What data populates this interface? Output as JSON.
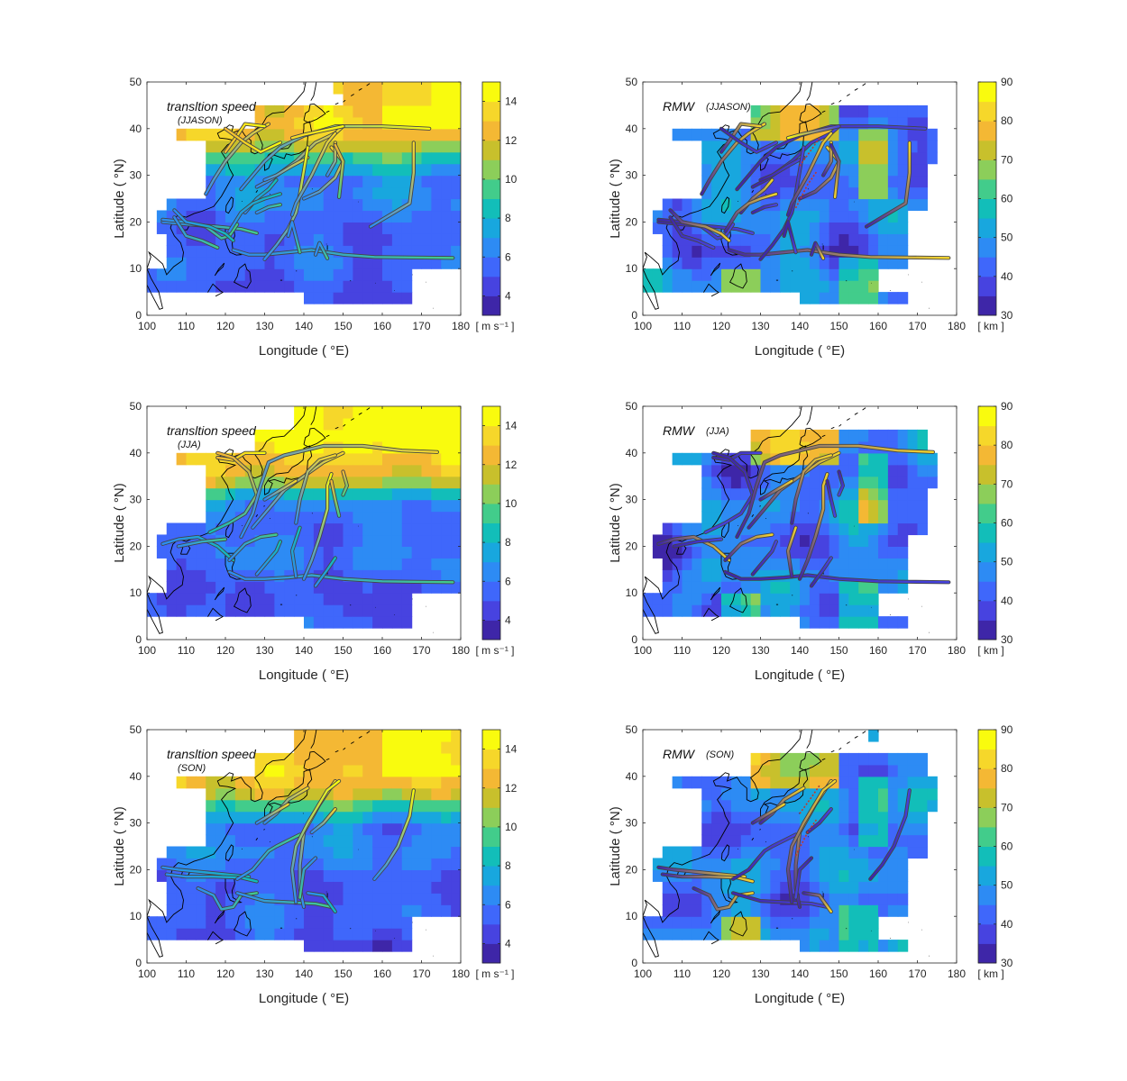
{
  "panels": [
    {
      "id": "ts-jjason",
      "title": "transltion speed",
      "season": "(JJASON)",
      "variable": "speed",
      "colorbar_unit": "[ m s⁻¹ ]"
    },
    {
      "id": "rmw-jjason",
      "title": "RMW",
      "season": "(JJASON)",
      "variable": "rmw",
      "colorbar_unit": "[ km ]"
    },
    {
      "id": "ts-jja",
      "title": "transltion speed",
      "season": "(JJA)",
      "variable": "speed",
      "colorbar_unit": "[ m s⁻¹ ]"
    },
    {
      "id": "rmw-jja",
      "title": "RMW",
      "season": "(JJA)",
      "variable": "rmw",
      "colorbar_unit": "[ km ]"
    },
    {
      "id": "ts-son",
      "title": "transltion speed",
      "season": "(SON)",
      "variable": "speed",
      "colorbar_unit": "[ m s⁻¹ ]"
    },
    {
      "id": "rmw-son",
      "title": "RMW",
      "season": "(SON)",
      "variable": "rmw",
      "colorbar_unit": "[ km ]"
    }
  ],
  "axes": {
    "xlabel": "Longitude ( °E)",
    "ylabel": "Latitude ( °N)",
    "xlim": [
      100,
      180
    ],
    "ylim": [
      0,
      50
    ],
    "xticks": [
      100,
      110,
      120,
      130,
      140,
      150,
      160,
      170,
      180
    ],
    "yticks": [
      0,
      10,
      20,
      30,
      40,
      50
    ]
  },
  "colorbars": {
    "speed": {
      "range": [
        3,
        15
      ],
      "ticks": [
        4,
        6,
        8,
        10,
        12,
        14
      ]
    },
    "rmw": {
      "range": [
        30,
        90
      ],
      "ticks": [
        30,
        40,
        50,
        60,
        70,
        80,
        90
      ]
    }
  },
  "colormap": [
    "#3e26a8",
    "#4743e0",
    "#3f67fb",
    "#2d8bf4",
    "#18a7de",
    "#12beb9",
    "#42cc8b",
    "#8cce5a",
    "#c8c02c",
    "#f4b834",
    "#f6d72a",
    "#f9fb0e"
  ],
  "track_colors": {
    "fast": "#f9fb0e",
    "slow": "#3e26a8",
    "outline": "#444444"
  }
}
